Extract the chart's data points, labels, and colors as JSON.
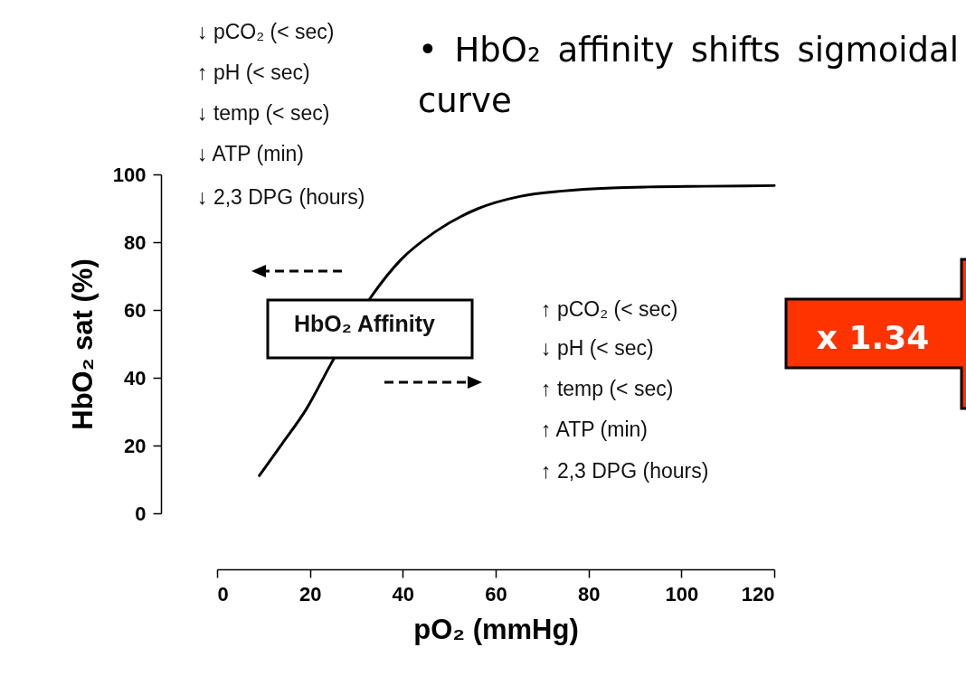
{
  "chart_data": {
    "type": "line",
    "title": "• HbO₂ affinity shifts sigmoidal curve",
    "xlabel": "pO₂ (mmHg)",
    "ylabel": "HbO₂ sat (%)",
    "x": [
      9.1,
      14,
      19.2,
      24.7,
      33.5,
      39.5,
      46.8,
      56,
      65.2,
      74.4,
      85,
      92.7,
      105,
      120
    ],
    "series": [
      {
        "color": "#000000",
        "values": [
          11.1,
          20.5,
          30.7,
          44.5,
          64.5,
          74.7,
          82.9,
          89.8,
          93.5,
          95.1,
          96,
          96.3,
          96.5,
          96.7
        ]
      }
    ],
    "xlim": [
      0,
      120
    ],
    "xticks": [
      0,
      20,
      40,
      60,
      80,
      100,
      120
    ],
    "ylim": [
      0,
      100
    ],
    "yticks": [
      0,
      20,
      40,
      60,
      80,
      100
    ],
    "grid": false,
    "marker": "none",
    "line_style": "solid",
    "annotations": [
      "↓ pCO₂ (< sec)",
      "↑ pH (< sec)",
      "↓ temp (< sec)",
      "↓ ATP (min)",
      "↓ 2,3 DPG (hours)",
      "HbO₂ Affinity",
      "↑ pCO₂ (< sec)",
      "↓ pH (< sec)",
      "↑ temp (< sec)",
      "↑ ATP (min)",
      "↑ 2,3 DPG (hours)",
      "x 1.34"
    ]
  }
}
